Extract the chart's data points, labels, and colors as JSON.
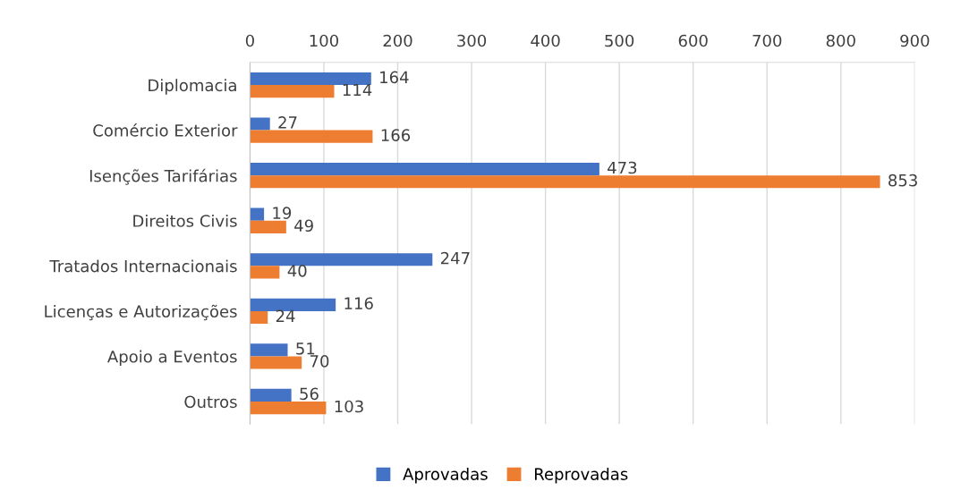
{
  "chart_data": {
    "type": "bar",
    "orientation": "horizontal",
    "categories": [
      "Diplomacia",
      "Comércio Exterior",
      "Isenções Tarifárias",
      "Direitos Civis",
      "Tratados Internacionais",
      "Licenças e Autorizações",
      "Apoio a Eventos",
      "Outros"
    ],
    "series": [
      {
        "name": "Aprovadas",
        "color": "#4472c4",
        "values": [
          164,
          27,
          473,
          19,
          247,
          116,
          51,
          56
        ]
      },
      {
        "name": "Reprovadas",
        "color": "#ed7d31",
        "values": [
          114,
          166,
          853,
          49,
          40,
          24,
          70,
          103
        ]
      }
    ],
    "xlim": [
      0,
      900
    ],
    "xticks": [
      0,
      100,
      200,
      300,
      400,
      500,
      600,
      700,
      800,
      900
    ],
    "grid": "x",
    "legend": "bottom",
    "data_labels": true
  }
}
